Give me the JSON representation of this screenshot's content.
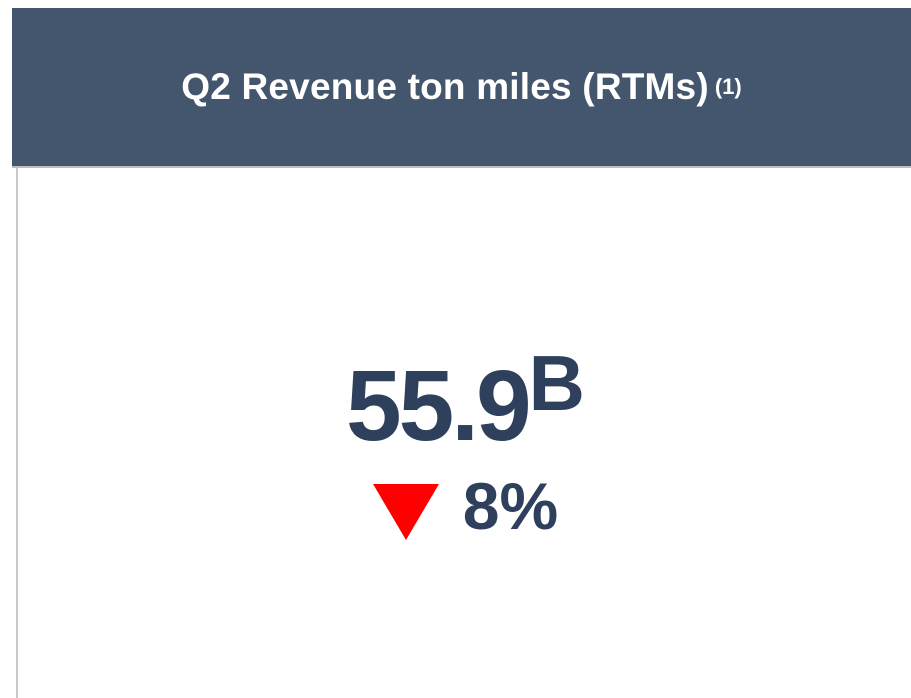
{
  "header": {
    "title": "Q2 Revenue ton miles (RTMs)",
    "footnote": "(1)"
  },
  "kpi": {
    "value": "55.9",
    "unit": "B"
  },
  "change": {
    "value": "8%"
  }
}
